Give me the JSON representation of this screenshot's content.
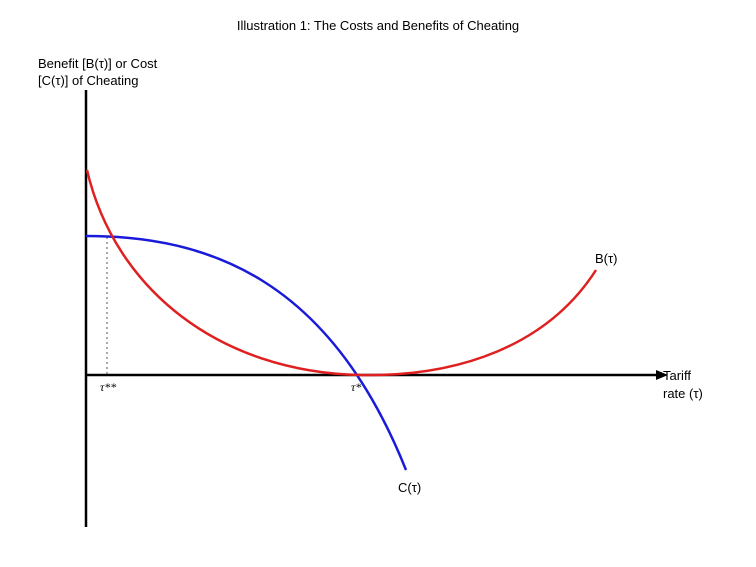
{
  "title": "Illustration 1: The Costs and Benefits of Cheating",
  "y_axis": {
    "line1": "Benefit [B(τ)] or Cost",
    "line2": "[C(τ)] of Cheating"
  },
  "x_axis": {
    "line1": "Tariff",
    "line2": "rate (τ)"
  },
  "curves": {
    "benefit": {
      "label": "B(τ)",
      "color": "#e02020"
    },
    "cost": {
      "label": "C(τ)",
      "color": "#1a1adb"
    }
  },
  "ticks": {
    "tau_double_star": "τ**",
    "tau_star": "τ*"
  }
}
